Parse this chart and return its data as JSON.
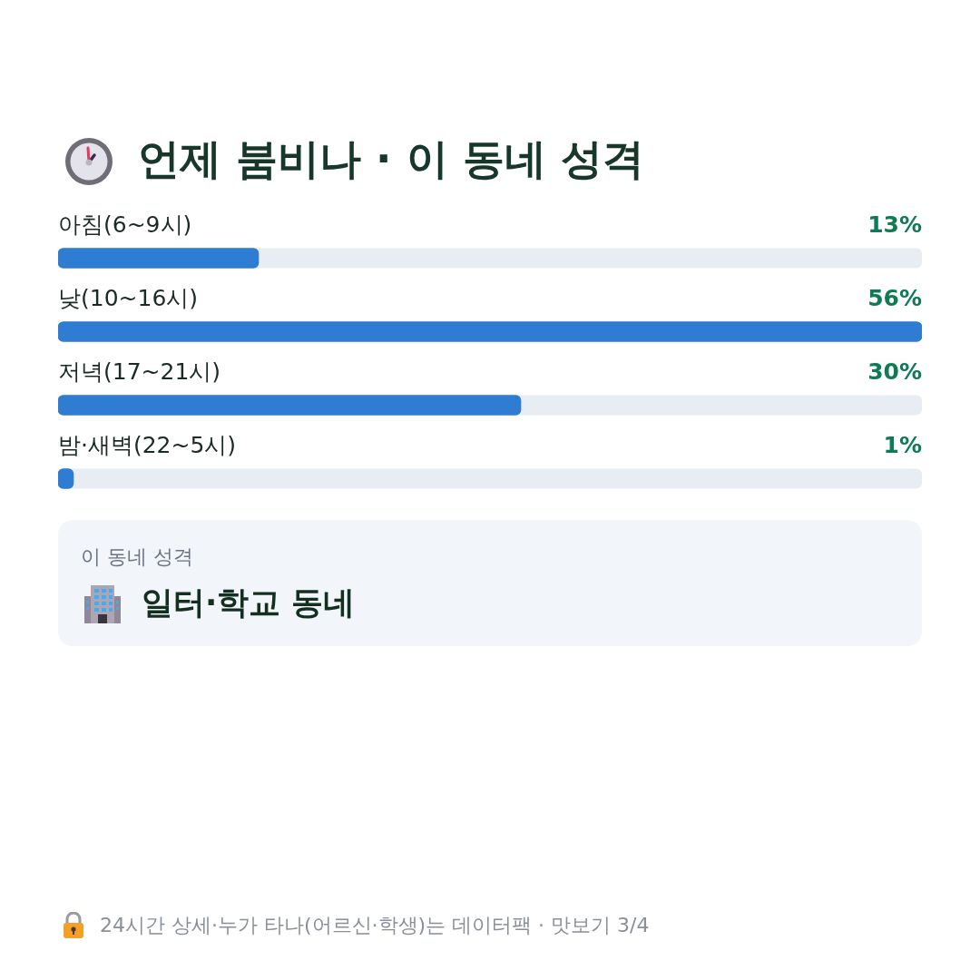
{
  "chart_data": {
    "type": "bar",
    "orientation": "horizontal",
    "title": "언제 붐비나 · 이 동네 성격",
    "categories": [
      "아침(6~9시)",
      "낮(10~16시)",
      "저녁(17~21시)",
      "밤·새벽(22~5시)"
    ],
    "values": [
      13,
      56,
      30,
      1
    ],
    "value_labels": [
      "13%",
      "56%",
      "30%",
      "1%"
    ],
    "color": "#2e7dd2",
    "xlim": [
      0,
      56
    ],
    "tick_labels": "y",
    "annotations": [
      "이 동네 성격",
      "일터·학교 동네",
      "24시간 상세·누가 타나(어르신·학생)는 데이터팩 · 맛보기 3/4"
    ]
  }
}
